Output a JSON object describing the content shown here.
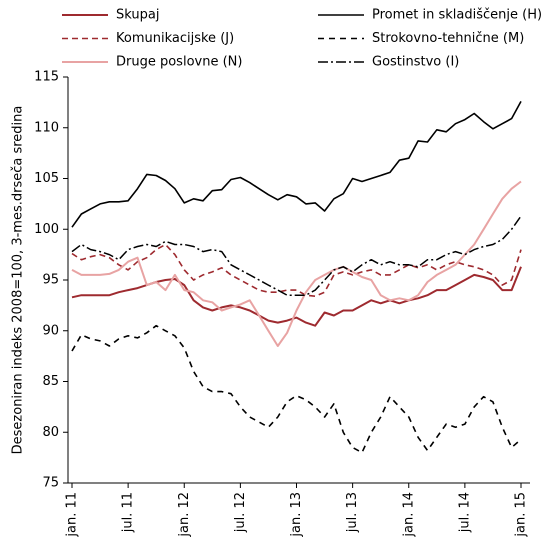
{
  "chart_data": {
    "type": "line",
    "ylabel": "Desezoniran indeks 2008=100, 3-mes.drseča sredina",
    "categories": [
      "jan. 11",
      null,
      null,
      null,
      null,
      null,
      "jul. 11",
      null,
      null,
      null,
      null,
      null,
      "jan. 12",
      null,
      null,
      null,
      null,
      null,
      "jul. 12",
      null,
      null,
      null,
      null,
      null,
      "jan. 13",
      null,
      null,
      null,
      null,
      null,
      "jul. 13",
      null,
      null,
      null,
      null,
      null,
      "jan. 14",
      null,
      null,
      null,
      null,
      null,
      "jul. 14",
      null,
      null,
      null,
      null,
      null,
      "jan. 15"
    ],
    "ylim": [
      75,
      115
    ],
    "yticks": [
      75,
      80,
      85,
      90,
      95,
      100,
      105,
      110,
      115
    ],
    "series": [
      {
        "name": "Skupaj",
        "color": "#9e2a2f",
        "values": [
          93.3,
          93.5,
          93.5,
          93.5,
          93.5,
          93.8,
          94.0,
          94.2,
          94.5,
          94.8,
          95.0,
          95.1,
          94.5,
          93.0,
          92.3,
          92.0,
          92.3,
          92.5,
          92.3,
          92.0,
          91.5,
          91.0,
          90.8,
          91.0,
          91.3,
          90.8,
          90.5,
          91.8,
          91.5,
          92.0,
          92.0,
          92.5,
          93.0,
          92.7,
          93.0,
          92.7,
          93.0,
          93.2,
          93.5,
          94.0,
          94.0,
          94.5,
          95.0,
          95.5,
          95.3,
          95.0,
          94.0,
          94.0,
          96.3
        ]
      },
      {
        "name": "Promet in skladiščenje (H)",
        "color": "#000000",
        "values": [
          100.2,
          101.5,
          102.0,
          102.5,
          102.7,
          102.7,
          102.8,
          104.0,
          105.4,
          105.3,
          104.8,
          104.0,
          102.6,
          103.0,
          102.8,
          103.8,
          103.9,
          104.9,
          105.1,
          104.6,
          104.0,
          103.4,
          102.9,
          103.4,
          103.2,
          102.5,
          102.6,
          101.8,
          103.0,
          103.5,
          105.0,
          104.7,
          105.0,
          105.3,
          105.6,
          106.8,
          107.0,
          108.7,
          108.6,
          109.8,
          109.6,
          110.4,
          110.8,
          111.4,
          110.6,
          109.9,
          110.4,
          110.9,
          112.6
        ]
      },
      {
        "name": "Komunikacijske (J)",
        "color": "#9e2a2f",
        "values": [
          97.6,
          97.0,
          97.3,
          97.5,
          97.2,
          96.5,
          96.0,
          96.8,
          97.2,
          98.0,
          98.5,
          97.5,
          96.0,
          95.0,
          95.5,
          95.8,
          96.2,
          95.5,
          95.0,
          94.5,
          94.0,
          93.8,
          93.8,
          94.0,
          94.0,
          93.5,
          93.4,
          93.8,
          95.5,
          95.8,
          95.5,
          95.8,
          96.0,
          95.5,
          95.5,
          96.0,
          96.5,
          96.2,
          96.5,
          96.0,
          96.5,
          96.8,
          96.5,
          96.3,
          96.0,
          95.5,
          94.5,
          95.0,
          98.0
        ]
      },
      {
        "name": "Strokovno-tehnične (M)",
        "color": "#000000",
        "values": [
          88.0,
          89.6,
          89.2,
          89.0,
          88.5,
          89.2,
          89.5,
          89.3,
          89.8,
          90.5,
          90.0,
          89.5,
          88.3,
          86.0,
          84.5,
          84.0,
          84.0,
          83.8,
          82.5,
          81.5,
          81.0,
          80.5,
          81.5,
          83.0,
          83.6,
          83.2,
          82.5,
          81.5,
          82.8,
          80.0,
          78.5,
          78.0,
          80.0,
          81.5,
          83.5,
          82.5,
          81.5,
          79.5,
          78.2,
          79.5,
          80.8,
          80.5,
          80.8,
          82.5,
          83.5,
          83.0,
          80.5,
          78.5,
          79.3
        ]
      },
      {
        "name": "Druge poslovne (N)",
        "color": "#e8a3a3",
        "values": [
          96.0,
          95.5,
          95.5,
          95.5,
          95.6,
          96.0,
          96.8,
          97.2,
          94.5,
          94.8,
          94.0,
          95.5,
          94.0,
          93.8,
          93.0,
          92.8,
          92.0,
          92.3,
          92.6,
          93.0,
          91.5,
          90.0,
          88.5,
          89.8,
          92.0,
          93.8,
          95.0,
          95.5,
          96.0,
          96.3,
          95.8,
          95.3,
          95.0,
          93.5,
          93.0,
          93.2,
          93.0,
          93.5,
          94.8,
          95.5,
          96.0,
          96.5,
          97.5,
          98.5,
          100.0,
          101.5,
          103.0,
          104.0,
          104.7
        ]
      },
      {
        "name": "Gostinstvo (I)",
        "color": "#000000",
        "values": [
          97.8,
          98.5,
          98.0,
          97.8,
          97.5,
          97.0,
          98.0,
          98.3,
          98.5,
          98.3,
          98.8,
          98.5,
          98.5,
          98.3,
          97.8,
          98.0,
          97.8,
          96.5,
          96.0,
          95.5,
          95.0,
          94.5,
          94.0,
          93.5,
          93.5,
          93.5,
          94.0,
          95.0,
          96.0,
          96.3,
          95.8,
          96.5,
          97.0,
          96.5,
          96.8,
          96.5,
          96.5,
          96.3,
          97.0,
          97.0,
          97.5,
          97.8,
          97.5,
          98.0,
          98.3,
          98.5,
          99.0,
          100.0,
          101.3
        ]
      }
    ]
  }
}
